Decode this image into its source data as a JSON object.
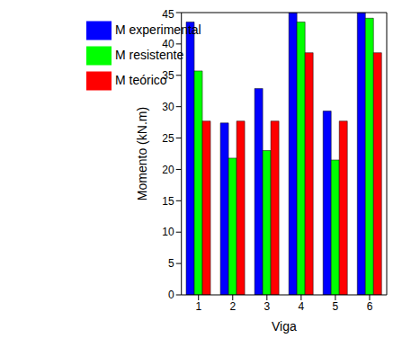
{
  "chart_data": {
    "type": "bar",
    "xlabel": "Viga",
    "ylabel": "Momento (kN.m)",
    "categories": [
      "1",
      "2",
      "3",
      "4",
      "5",
      "6"
    ],
    "series": [
      {
        "name": "M experimental",
        "color": "#0000ff",
        "values": [
          43.5,
          27.4,
          32.9,
          45,
          29.3,
          45
        ]
      },
      {
        "name": "M resistente",
        "color": "#00ff00",
        "values": [
          35.7,
          21.8,
          23.0,
          43.5,
          21.5,
          44.1
        ]
      },
      {
        "name": "M teórico",
        "color": "#ff0000",
        "values": [
          27.7,
          27.7,
          27.7,
          38.6,
          27.7,
          38.6
        ]
      }
    ],
    "ylim": [
      0,
      45
    ],
    "yticks": [
      0,
      5,
      10,
      15,
      20,
      25,
      30,
      35,
      40,
      45
    ],
    "legend": "upper left",
    "grid": false
  }
}
